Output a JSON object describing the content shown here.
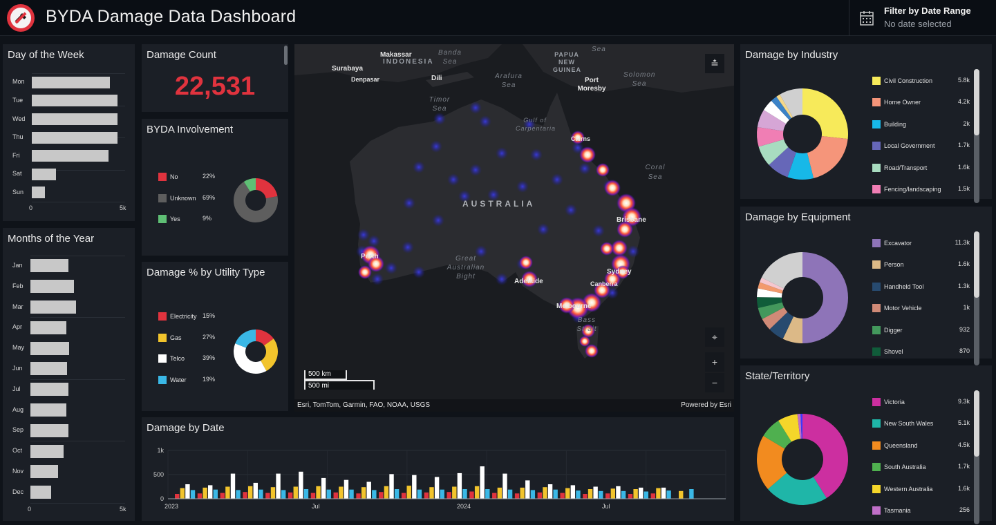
{
  "header": {
    "title": "BYDA Damage Data Dashboard",
    "filter_title": "Filter by Date Range",
    "filter_sub": "No date selected",
    "logo_icon": "no-dig-shovel-icon",
    "calendar_icon": "calendar-icon"
  },
  "day_of_week": {
    "title": "Day of the Week",
    "categories": [
      "Mon",
      "Tue",
      "Wed",
      "Thu",
      "Fri",
      "Sat",
      "Sun"
    ],
    "values": [
      4200,
      4600,
      4600,
      4600,
      4100,
      1300,
      700
    ],
    "axis": [
      "0",
      "5k"
    ],
    "max": 5000
  },
  "months": {
    "title": "Months of the Year",
    "categories": [
      "Jan",
      "Feb",
      "Mar",
      "Apr",
      "May",
      "Jun",
      "Jul",
      "Aug",
      "Sep",
      "Oct",
      "Nov",
      "Dec"
    ],
    "values": [
      2000,
      2300,
      2400,
      1900,
      2050,
      1950,
      2000,
      1900,
      2000,
      1750,
      1450,
      1100
    ],
    "axis": [
      "0",
      "5k"
    ],
    "max": 5000
  },
  "damage_count": {
    "title": "Damage Count",
    "value": "22,531"
  },
  "byda": {
    "title": "BYDA Involvement",
    "items": [
      {
        "label": "No",
        "pct": "22%",
        "value": 22,
        "color": "#e0333e"
      },
      {
        "label": "Unknown",
        "pct": "69%",
        "value": 69,
        "color": "#5e5e5e"
      },
      {
        "label": "Yes",
        "pct": "9%",
        "value": 9,
        "color": "#5fbf75"
      }
    ]
  },
  "utility": {
    "title": "Damage % by Utility Type",
    "items": [
      {
        "label": "Electricity",
        "pct": "15%",
        "value": 15,
        "color": "#e0333e"
      },
      {
        "label": "Gas",
        "pct": "27%",
        "value": 27,
        "color": "#f2c42c"
      },
      {
        "label": "Telco",
        "pct": "39%",
        "value": 39,
        "color": "#ffffff"
      },
      {
        "label": "Water",
        "pct": "19%",
        "value": 19,
        "color": "#3ab8e6"
      }
    ]
  },
  "map": {
    "labels": [
      {
        "t": "Makassar"
      },
      {
        "t": "INDONESIA"
      },
      {
        "t": "Surabaya"
      },
      {
        "t": "Denpasar"
      },
      {
        "t": "Dili"
      },
      {
        "t": "PAPUA NEW GUINEA"
      },
      {
        "t": "Port Moresby"
      },
      {
        "t": "AUSTRALIA"
      },
      {
        "t": "Cairns"
      },
      {
        "t": "Brisbane"
      },
      {
        "t": "Perth"
      },
      {
        "t": "Adelaide"
      },
      {
        "t": "Sydney"
      },
      {
        "t": "Canberra"
      },
      {
        "t": "Melbourne"
      }
    ],
    "seas": [
      "Banda Sea",
      "Arafura Sea",
      "Timor Sea",
      "Gulf of Carpentaria",
      "Solomon Sea",
      "Coral Sea",
      "Great Australian Bight",
      "Bass Strait",
      "Sea"
    ],
    "scale_km": "500 km",
    "scale_mi": "500 mi",
    "attribution": "Esri, TomTom, Garmin, FAO, NOAA, USGS",
    "powered": "Powered by Esri"
  },
  "date_chart": {
    "title": "Damage by Date",
    "yticks": [
      "1k",
      "500",
      "0"
    ],
    "xticks": [
      "2023",
      "Jul",
      "2024",
      "Jul"
    ],
    "ymax": 1000,
    "colors": [
      "#e0333e",
      "#f2c42c",
      "#ffffff",
      "#3ab8e6"
    ],
    "groups": [
      [
        100,
        220,
        300,
        180
      ],
      [
        110,
        230,
        280,
        190
      ],
      [
        120,
        250,
        520,
        180
      ],
      [
        140,
        260,
        330,
        190
      ],
      [
        120,
        240,
        520,
        180
      ],
      [
        130,
        250,
        560,
        200
      ],
      [
        120,
        260,
        430,
        190
      ],
      [
        130,
        250,
        390,
        190
      ],
      [
        110,
        240,
        350,
        180
      ],
      [
        140,
        260,
        510,
        200
      ],
      [
        120,
        270,
        490,
        190
      ],
      [
        130,
        240,
        450,
        190
      ],
      [
        140,
        250,
        530,
        200
      ],
      [
        150,
        260,
        670,
        200
      ],
      [
        120,
        230,
        520,
        190
      ],
      [
        110,
        230,
        380,
        180
      ],
      [
        130,
        240,
        300,
        190
      ],
      [
        120,
        220,
        280,
        170
      ],
      [
        100,
        200,
        250,
        160
      ],
      [
        110,
        210,
        260,
        160
      ],
      [
        100,
        200,
        230,
        150
      ],
      [
        110,
        220,
        230,
        170
      ],
      [
        0,
        160,
        0,
        200
      ],
      [
        0,
        0,
        0,
        0
      ]
    ]
  },
  "industry": {
    "title": "Damage by Industry",
    "items": [
      {
        "label": "Civil Construction",
        "value": "5.8k",
        "n": 5800,
        "color": "#f7ea5a"
      },
      {
        "label": "Home Owner",
        "value": "4.2k",
        "n": 4200,
        "color": "#f5957a"
      },
      {
        "label": "Building",
        "value": "2k",
        "n": 2000,
        "color": "#17b8e8"
      },
      {
        "label": "Local Government",
        "value": "1.7k",
        "n": 1700,
        "color": "#6667b8"
      },
      {
        "label": "Road/Transport",
        "value": "1.6k",
        "n": 1600,
        "color": "#a8dcc0"
      },
      {
        "label": "Fencing/landscaping",
        "value": "1.5k",
        "n": 1500,
        "color": "#f07eb4"
      }
    ],
    "rest": [
      {
        "n": 1400,
        "color": "#d6a6d6"
      },
      {
        "n": 900,
        "color": "#ffffff"
      },
      {
        "n": 500,
        "color": "#3c83c7"
      },
      {
        "n": 300,
        "color": "#f5d88a"
      },
      {
        "n": 1800,
        "color": "#d0d0d0"
      }
    ]
  },
  "equipment": {
    "title": "Damage by Equipment",
    "items": [
      {
        "label": "Excavator",
        "value": "11.3k",
        "n": 11300,
        "color": "#8e74b8"
      },
      {
        "label": "Person",
        "value": "1.6k",
        "n": 1600,
        "color": "#dcb987"
      },
      {
        "label": "Handheld Tool",
        "value": "1.3k",
        "n": 1300,
        "color": "#274a6f"
      },
      {
        "label": "Motor Vehicle",
        "value": "1k",
        "n": 1000,
        "color": "#d08a77"
      },
      {
        "label": "Digger",
        "value": "932",
        "n": 932,
        "color": "#43985c"
      },
      {
        "label": "Shovel",
        "value": "870",
        "n": 870,
        "color": "#105c3a"
      }
    ],
    "rest": [
      {
        "n": 700,
        "color": "#ffffff"
      },
      {
        "n": 500,
        "color": "#f29a6d"
      },
      {
        "n": 400,
        "color": "#f5c7cf"
      },
      {
        "n": 4000,
        "color": "#d0d0d0"
      }
    ]
  },
  "state": {
    "title": "State/Territory",
    "items": [
      {
        "label": "Victoria",
        "value": "9.3k",
        "n": 9300,
        "color": "#cc2fa0"
      },
      {
        "label": "New South Wales",
        "value": "5.1k",
        "n": 5100,
        "color": "#1fb6a8"
      },
      {
        "label": "Queensland",
        "value": "4.5k",
        "n": 4500,
        "color": "#f28b1f"
      },
      {
        "label": "South Australia",
        "value": "1.7k",
        "n": 1700,
        "color": "#4fb04f"
      },
      {
        "label": "Western Australia",
        "value": "1.6k",
        "n": 1600,
        "color": "#f5d62a"
      },
      {
        "label": "Tasmania",
        "value": "256",
        "n": 256,
        "color": "#c06fc8"
      }
    ],
    "rest": [
      {
        "n": 150,
        "color": "#3a3aff"
      }
    ]
  }
}
